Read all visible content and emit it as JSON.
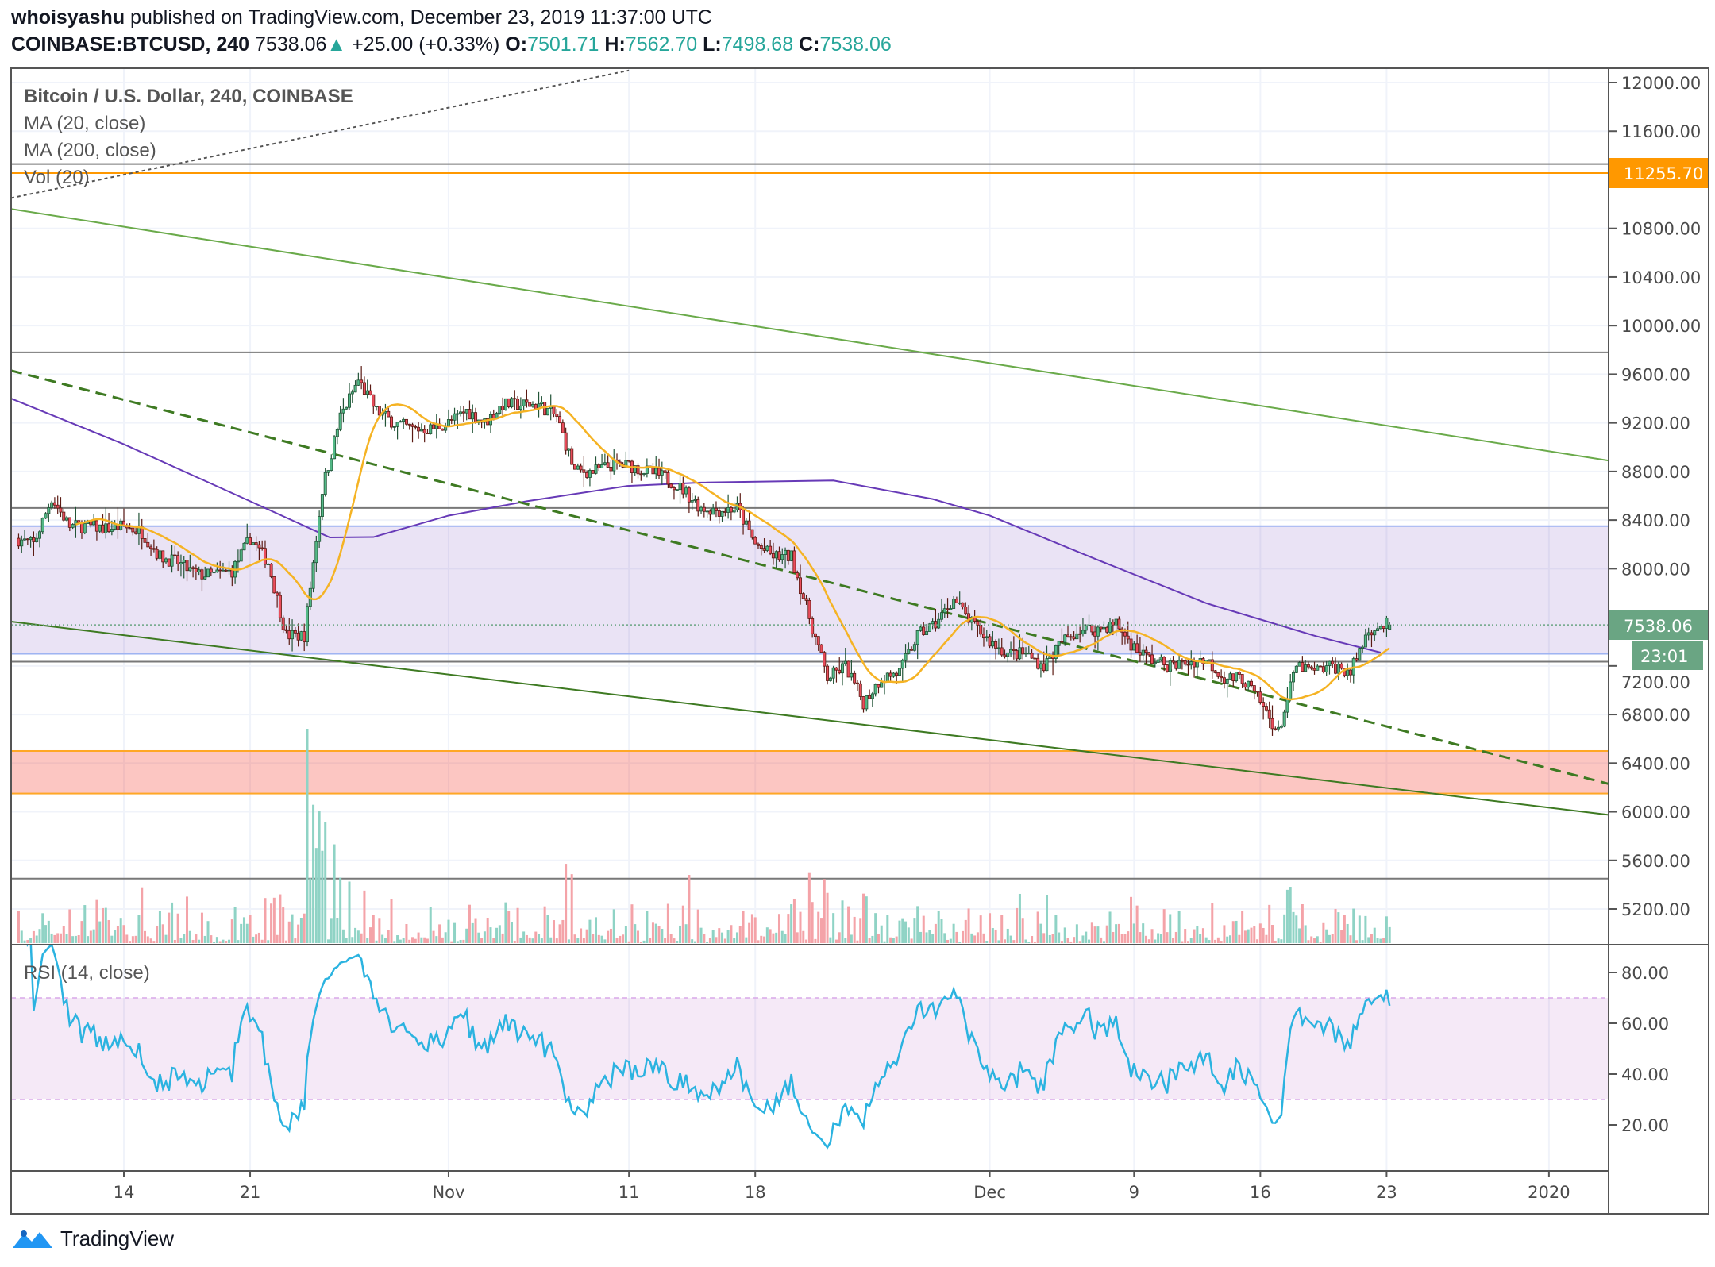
{
  "header": {
    "author": "whoisyashu",
    "published": "published on TradingView.com, December 23, 2019 11:37:00 UTC",
    "symbol": "COINBASE:BTCUSD, 240",
    "last": "7538.06",
    "change": "+25.00 (+0.33%)",
    "o_label": "O:",
    "o": "7501.71",
    "h_label": "H:",
    "h": "7562.70",
    "l_label": "L:",
    "l": "7498.68",
    "c_label": "C:",
    "c": "7538.06"
  },
  "legend": {
    "title": "Bitcoin / U.S. Dollar, 240, COINBASE",
    "ma20": "MA (20, close)",
    "ma200": "MA (200, close)",
    "vol": "Vol (20)",
    "rsi": "RSI (14, close)"
  },
  "badges": {
    "level": "11255.70",
    "price": "7538.06",
    "countdown": "23:01"
  },
  "footer": {
    "brand": "TradingView"
  },
  "colors": {
    "up": "#53b987",
    "down": "#eb4d5c",
    "ma20": "#f5b324",
    "ma200": "#673ab7",
    "rsi": "#2bb3e0",
    "orange": "#ff9800",
    "price_badge": "#6aa583"
  },
  "chart_data": {
    "type": "candlestick",
    "title": "Bitcoin / U.S. Dollar, 240, COINBASE",
    "start_date": "2019-10-08",
    "daily_closes": [
      8250,
      8200,
      8580,
      8350,
      8350,
      8330,
      8350,
      8300,
      8100,
      8050,
      7950,
      7950,
      7980,
      8250,
      8050,
      7450,
      7450,
      8650,
      9250,
      9550,
      9300,
      9200,
      9150,
      9150,
      9200,
      9300,
      9200,
      9350,
      9350,
      9350,
      9250,
      8800,
      8800,
      8850,
      8850,
      8800,
      8750,
      8650,
      8500,
      8480,
      8500,
      8200,
      8100,
      8100,
      7600,
      7100,
      7200,
      6900,
      7100,
      7150,
      7450,
      7550,
      7750,
      7550,
      7400,
      7300,
      7300,
      7200,
      7400,
      7500,
      7500,
      7550,
      7350,
      7250,
      7200,
      7230,
      7250,
      7100,
      7100,
      6900,
      6650,
      7200,
      7150,
      7200,
      7150,
      7500,
      7538
    ],
    "last_candle": {
      "open": 7501.71,
      "high": 7562.7,
      "low": 7498.68,
      "close": 7538.06
    },
    "ma200": [
      {
        "date": "2019-10-07T18:00:00Z",
        "price": 9400
      },
      {
        "date": "2019-10-14",
        "price": 9024
      },
      {
        "date": "2019-10-21",
        "price": 8555
      },
      {
        "date": "2019-10-25T10:00:00Z",
        "price": 8257
      },
      {
        "date": "2019-10-27T20:00:00Z",
        "price": 8260
      },
      {
        "date": "2019-11-01",
        "price": 8437
      },
      {
        "date": "2019-11-05T08:00:00Z",
        "price": 8555
      },
      {
        "date": "2019-11-10T22:00:00Z",
        "price": 8681
      },
      {
        "date": "2019-11-15",
        "price": 8709
      },
      {
        "date": "2019-11-22T08:00:00Z",
        "price": 8726
      },
      {
        "date": "2019-11-27T20:00:00Z",
        "price": 8573
      },
      {
        "date": "2019-12-01",
        "price": 8437
      },
      {
        "date": "2019-12-06T22:00:00Z",
        "price": 8076
      },
      {
        "date": "2019-12-13",
        "price": 7716
      },
      {
        "date": "2019-12-19T02:00:00Z",
        "price": 7445
      },
      {
        "date": "2019-12-22T16:00:00Z",
        "price": 7310
      }
    ],
    "price_axis": {
      "ticks": [
        12000,
        11600,
        10800,
        10400,
        10000,
        9600,
        9200,
        8800,
        8400,
        8000,
        7200,
        6800,
        6400,
        6000,
        5600,
        5200
      ],
      "range": [
        5070,
        12180
      ]
    },
    "rsi_axis": {
      "ticks": [
        80,
        60,
        40,
        20
      ],
      "band": [
        30,
        70
      ],
      "range": [
        6,
        89
      ]
    },
    "time_axis": [
      {
        "label": "14",
        "date": "2019-10-14"
      },
      {
        "label": "21",
        "date": "2019-10-21"
      },
      {
        "label": "Nov",
        "date": "2019-11-01"
      },
      {
        "label": "11",
        "date": "2019-11-11"
      },
      {
        "label": "18",
        "date": "2019-11-18"
      },
      {
        "label": "Dec",
        "date": "2019-12-01"
      },
      {
        "label": "9",
        "date": "2019-12-09"
      },
      {
        "label": "16",
        "date": "2019-12-16"
      },
      {
        "label": "23",
        "date": "2019-12-23"
      },
      {
        "label": "2020",
        "date": "2020-01-01"
      }
    ],
    "horizontal_levels": [
      11330,
      9780,
      8500,
      7235,
      5450
    ],
    "orange_level": 11255.7,
    "zones": [
      {
        "name": "purple-range",
        "from": 7300,
        "to": 8350
      },
      {
        "name": "red-support",
        "from": 6150,
        "to": 6500
      }
    ],
    "trendlines": [
      {
        "name": "upper-channel",
        "style": "solid",
        "color": "#6aaa4a",
        "p1": {
          "date": "2019-10-07T18:00:00Z",
          "price": 10960
        },
        "p2": {
          "date": "2020-01-04T07:00:00Z",
          "price": 8890
        }
      },
      {
        "name": "lower-channel",
        "style": "solid",
        "color": "#3e7a22",
        "p1": {
          "date": "2019-10-07T18:00:00Z",
          "price": 7565
        },
        "p2": {
          "date": "2020-01-04T07:00:00Z",
          "price": 5975
        }
      },
      {
        "name": "dashed-trend",
        "style": "dashed",
        "color": "#3e7a22",
        "p1": {
          "date": "2019-10-07T18:00:00Z",
          "price": 9630
        },
        "p2": {
          "date": "2020-01-04T07:00:00Z",
          "price": 6230
        }
      },
      {
        "name": "dotted-trend",
        "style": "dotted",
        "color": "#555555",
        "p1": {
          "date": "2019-10-07T18:00:00Z",
          "price": 11050
        },
        "p2": {
          "date": "2019-11-11T00:00:00Z",
          "price": 12100
        }
      }
    ]
  }
}
